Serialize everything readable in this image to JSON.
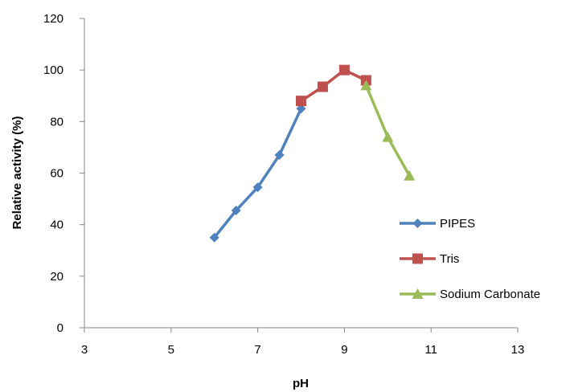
{
  "chart_data": {
    "type": "line",
    "xlabel": "pH",
    "ylabel": "Relative activity (%)",
    "xlim": [
      3,
      13
    ],
    "ylim": [
      0,
      120
    ],
    "xticks": [
      3,
      5,
      7,
      9,
      11,
      13
    ],
    "yticks": [
      0,
      20,
      40,
      60,
      80,
      100,
      120
    ],
    "grid": false,
    "legend_position": "right",
    "series": [
      {
        "name": "PIPES",
        "marker": "diamond",
        "color": "#4F81BD",
        "x": [
          6,
          6.5,
          7,
          7.5,
          8
        ],
        "y": [
          35,
          45.5,
          54.5,
          67,
          85
        ]
      },
      {
        "name": "Tris",
        "marker": "square",
        "color": "#C0504D",
        "x": [
          8,
          8.5,
          9,
          9.5
        ],
        "y": [
          88,
          93.5,
          100,
          96
        ]
      },
      {
        "name": "Sodium Carbonate",
        "marker": "triangle",
        "color": "#9BBB59",
        "x": [
          9.5,
          10,
          10.5
        ],
        "y": [
          94,
          74,
          59
        ]
      }
    ]
  }
}
